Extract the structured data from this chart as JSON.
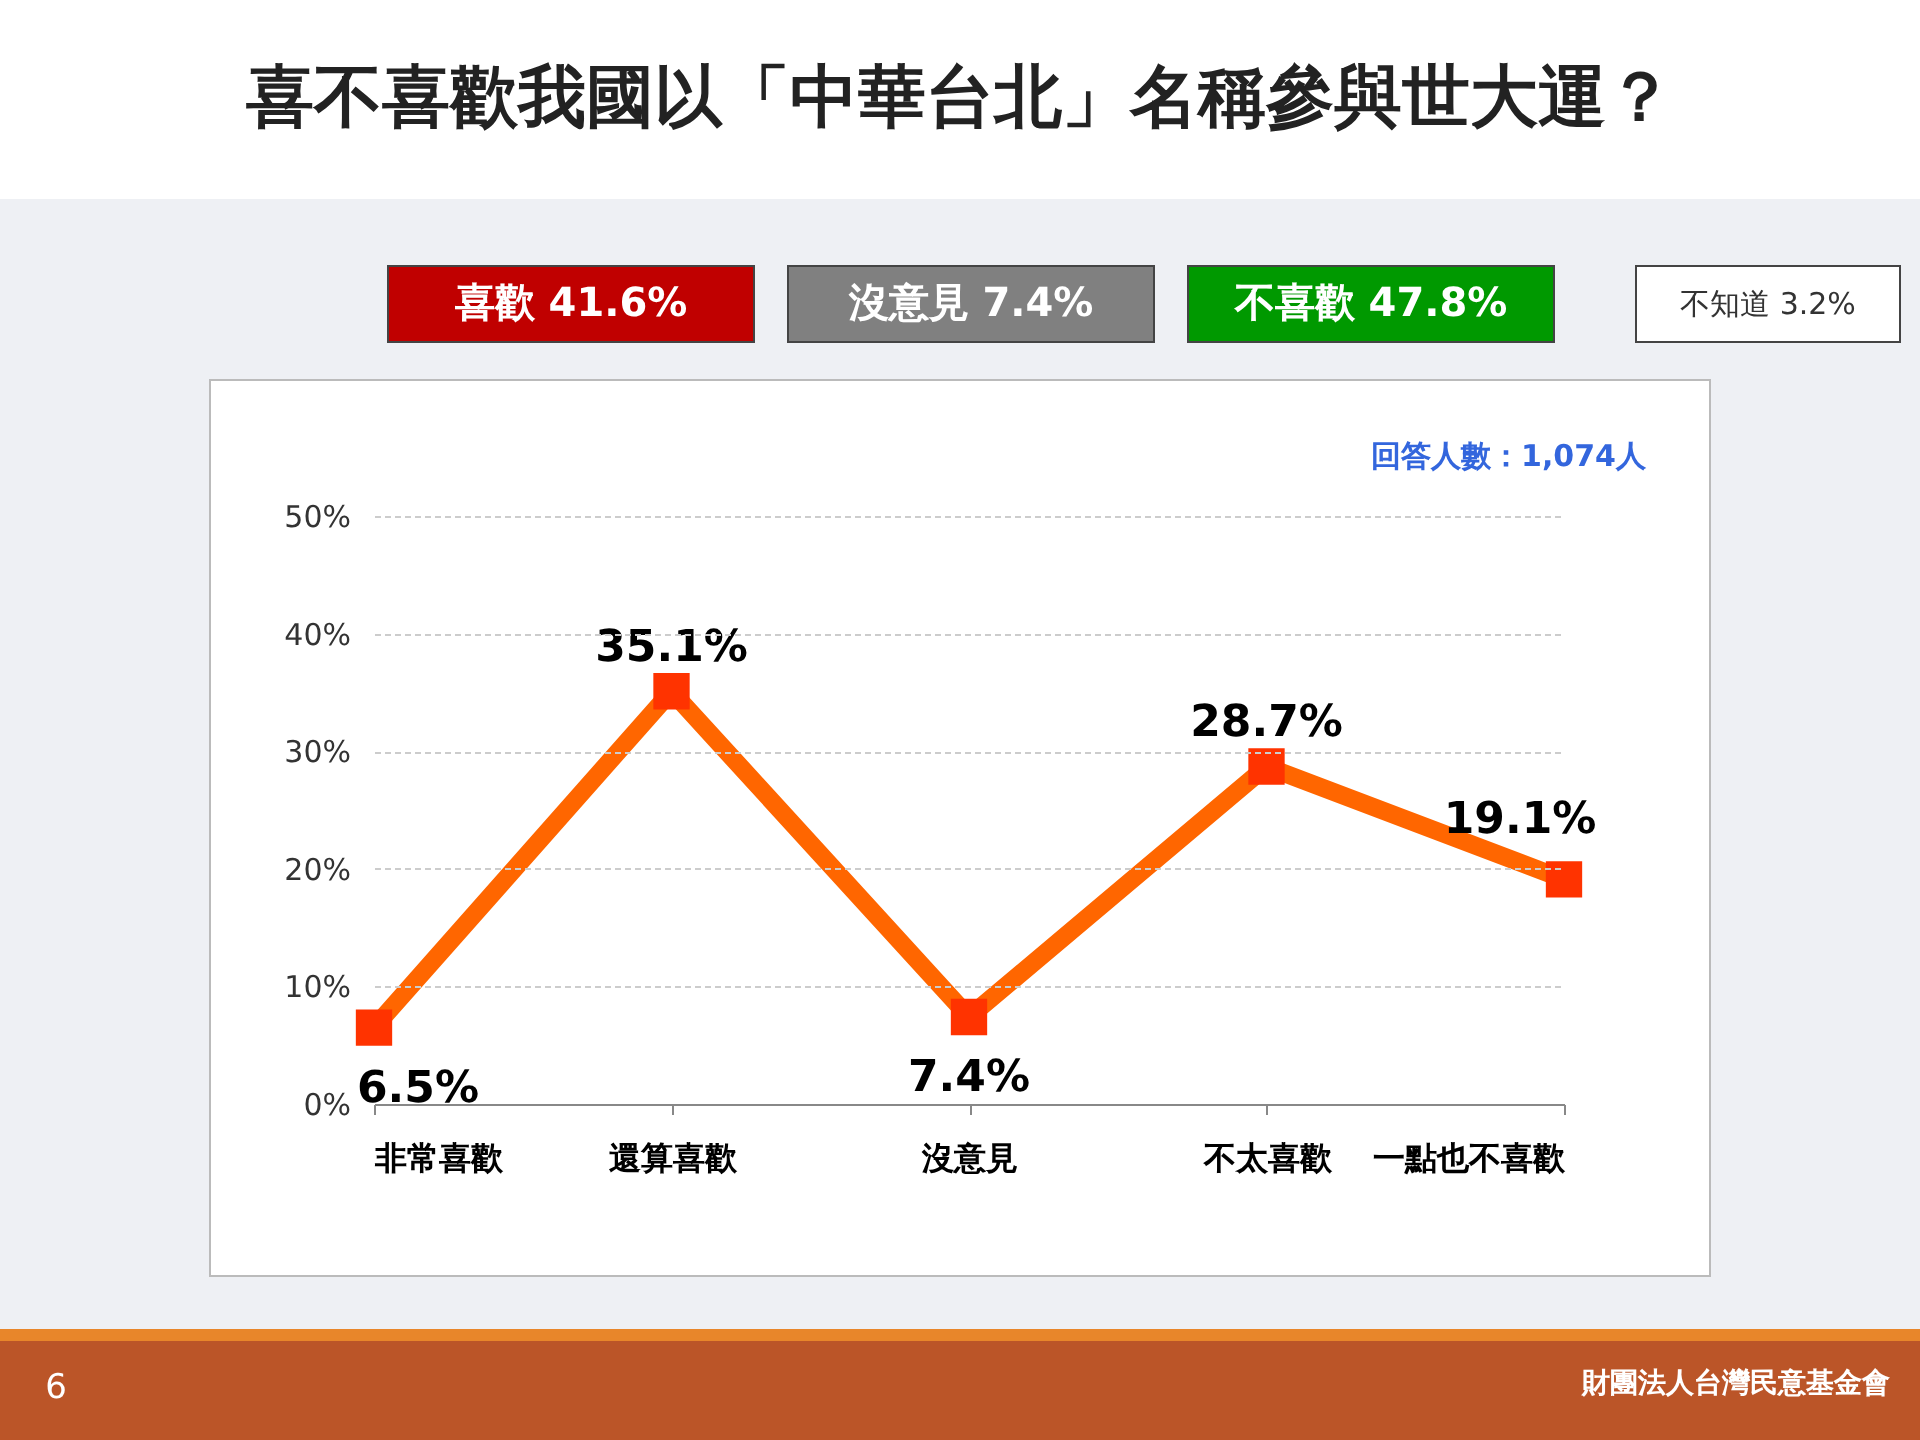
{
  "chart_data": {
    "type": "line",
    "title": "喜不喜歡我國以「中華台北」名稱參與世大運？",
    "categories": [
      "非常喜歡",
      "還算喜歡",
      "沒意見",
      "不太喜歡",
      "一點也不喜歡"
    ],
    "values": [
      6.5,
      35.1,
      7.4,
      28.7,
      19.1
    ],
    "value_labels": [
      "6.5%",
      "35.1%",
      "7.4%",
      "28.7%",
      "19.1%"
    ],
    "color": "#ff6600",
    "ylim": [
      0,
      50
    ],
    "yticks": [
      {
        "value": 0,
        "label": "0%"
      },
      {
        "value": 10,
        "label": "10%"
      },
      {
        "value": 20,
        "label": "20%"
      },
      {
        "value": 30,
        "label": "30%"
      },
      {
        "value": 40,
        "label": "40%"
      },
      {
        "value": 50,
        "label": "50%"
      }
    ],
    "grid": "y",
    "marker": "square",
    "line_style": "solid",
    "legend": false,
    "annotations": [
      "喜歡 41.6%",
      "沒意見 7.4%",
      "不喜歡 47.8%",
      "不知道 3.2%",
      "回答人數：1,074人",
      "6",
      "財團法人台灣民意基金會"
    ]
  }
}
